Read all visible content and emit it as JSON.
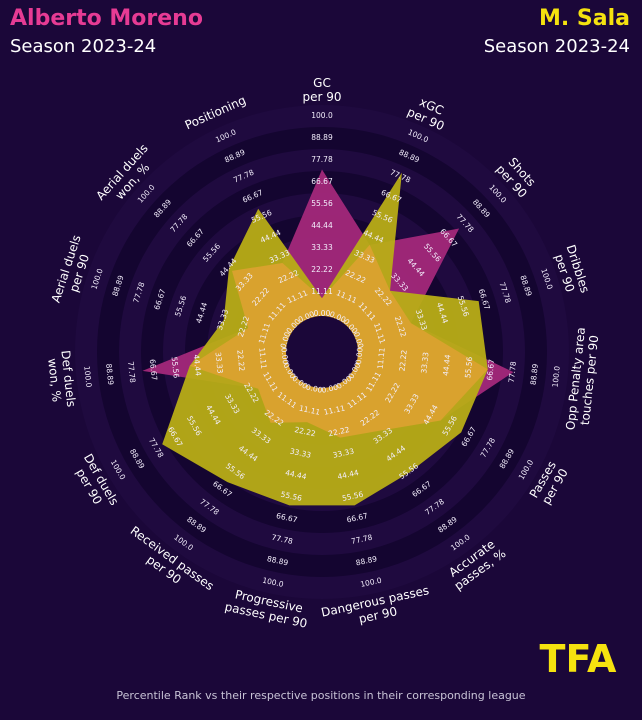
{
  "header": {
    "player1_name": "Alberto Moreno",
    "player1_season": "Season 2023-24",
    "player2_name": "M. Sala",
    "player2_season": "Season 2023-24"
  },
  "footnote": "Percentile Rank vs their respective positions in their corresponding league",
  "logo_text": "TFA",
  "colors": {
    "background": "#1b0739",
    "ring_dark": "#140530",
    "ring_light": "#1f0a3f",
    "player1": "#a3287a",
    "player2": "#b8ad16",
    "overlap": "#d9a22e",
    "logo": "#f5e20f"
  },
  "chart_data": {
    "type": "radar",
    "categories": [
      "GC\nper 90",
      "xGC\nper 90",
      "Shots\nper 90",
      "Dribbles\nper 90",
      "Opp Penalty area\ntouches per 90",
      "Passes\nper 90",
      "Accurate\npasses, %",
      "Dangerous passes\nper 90",
      "Progressive\npasses per 90",
      "Received passes\nper 90",
      "Def duels\nper 90",
      "Def duels\nwon, %",
      "Aerial duels\nper 90",
      "Aerial duels\nwon, %",
      "Positioning"
    ],
    "tick_labels": [
      "0.00",
      "11.11",
      "22.22",
      "33.33",
      "44.44",
      "55.56",
      "66.67",
      "77.78",
      "88.89",
      "100.0"
    ],
    "rlim": [
      0,
      100
    ],
    "series": [
      {
        "name": "Alberto Moreno",
        "values": [
          73,
          40,
          74,
          28,
          78,
          50,
          30,
          25,
          17,
          25,
          18,
          72,
          20,
          42,
          30
        ]
      },
      {
        "name": "M. Sala",
        "values": [
          8,
          80,
          27,
          64,
          65,
          62,
          56,
          60,
          60,
          62,
          74,
          48,
          33,
          44,
          60
        ]
      }
    ]
  }
}
